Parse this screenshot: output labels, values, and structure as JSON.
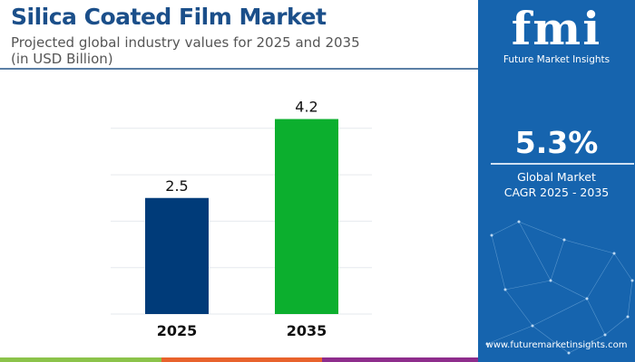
{
  "header": {
    "title": "Silica Coated Film Market",
    "subtitle_line1": "Projected global industry values for 2025 and 2035",
    "subtitle_line2": "(in USD Billion)"
  },
  "chart_data": {
    "type": "bar",
    "categories": [
      "2025",
      "2035"
    ],
    "values": [
      2.5,
      4.2
    ],
    "data_labels": [
      "2.5",
      "4.2"
    ],
    "colors": [
      "#003b79",
      "#0caf2e"
    ],
    "ylim": [
      0,
      4.2
    ],
    "grid": true,
    "title": "",
    "xlabel": "",
    "ylabel": ""
  },
  "panel": {
    "logo_text": "fmi",
    "brand": "Future Market Insights",
    "cagr_value": "5.3%",
    "cagr_label_line1": "Global Market",
    "cagr_label_line2": "CAGR 2025 - 2035",
    "url": "www.futuremarketinsights.com",
    "background": "#1664ae"
  },
  "footer_stripe_colors": [
    "#8bc34a",
    "#e8622c",
    "#8e2d8c"
  ]
}
